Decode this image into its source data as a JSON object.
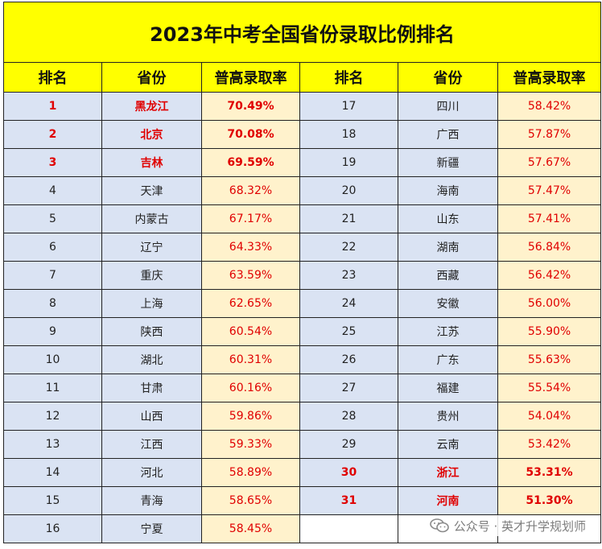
{
  "title": "2023年中考全国省份录取比例排名",
  "headers": [
    "排名",
    "省份",
    "普高录取率",
    "排名",
    "省份",
    "普高录取率"
  ],
  "rows": [
    {
      "left": {
        "rank": "1",
        "province": "黑龙江",
        "rate": "70.49%",
        "highlight": true
      },
      "right": {
        "rank": "17",
        "province": "四川",
        "rate": "58.42%",
        "highlight": false
      }
    },
    {
      "left": {
        "rank": "2",
        "province": "北京",
        "rate": "70.08%",
        "highlight": true
      },
      "right": {
        "rank": "18",
        "province": "广西",
        "rate": "57.87%",
        "highlight": false
      }
    },
    {
      "left": {
        "rank": "3",
        "province": "吉林",
        "rate": "69.59%",
        "highlight": true
      },
      "right": {
        "rank": "19",
        "province": "新疆",
        "rate": "57.67%",
        "highlight": false
      }
    },
    {
      "left": {
        "rank": "4",
        "province": "天津",
        "rate": "68.32%",
        "highlight": false
      },
      "right": {
        "rank": "20",
        "province": "海南",
        "rate": "57.47%",
        "highlight": false
      }
    },
    {
      "left": {
        "rank": "5",
        "province": "内蒙古",
        "rate": "67.17%",
        "highlight": false
      },
      "right": {
        "rank": "21",
        "province": "山东",
        "rate": "57.41%",
        "highlight": false
      }
    },
    {
      "left": {
        "rank": "6",
        "province": "辽宁",
        "rate": "64.33%",
        "highlight": false
      },
      "right": {
        "rank": "22",
        "province": "湖南",
        "rate": "56.84%",
        "highlight": false
      }
    },
    {
      "left": {
        "rank": "7",
        "province": "重庆",
        "rate": "63.59%",
        "highlight": false
      },
      "right": {
        "rank": "23",
        "province": "西藏",
        "rate": "56.42%",
        "highlight": false
      }
    },
    {
      "left": {
        "rank": "8",
        "province": "上海",
        "rate": "62.65%",
        "highlight": false
      },
      "right": {
        "rank": "24",
        "province": "安徽",
        "rate": "56.00%",
        "highlight": false
      }
    },
    {
      "left": {
        "rank": "9",
        "province": "陕西",
        "rate": "60.54%",
        "highlight": false
      },
      "right": {
        "rank": "25",
        "province": "江苏",
        "rate": "55.90%",
        "highlight": false
      }
    },
    {
      "left": {
        "rank": "10",
        "province": "湖北",
        "rate": "60.31%",
        "highlight": false
      },
      "right": {
        "rank": "26",
        "province": "广东",
        "rate": "55.63%",
        "highlight": false
      }
    },
    {
      "left": {
        "rank": "11",
        "province": "甘肃",
        "rate": "60.16%",
        "highlight": false
      },
      "right": {
        "rank": "27",
        "province": "福建",
        "rate": "55.54%",
        "highlight": false
      }
    },
    {
      "left": {
        "rank": "12",
        "province": "山西",
        "rate": "59.86%",
        "highlight": false
      },
      "right": {
        "rank": "28",
        "province": "贵州",
        "rate": "54.04%",
        "highlight": false
      }
    },
    {
      "left": {
        "rank": "13",
        "province": "江西",
        "rate": "59.33%",
        "highlight": false
      },
      "right": {
        "rank": "29",
        "province": "云南",
        "rate": "53.42%",
        "highlight": false
      }
    },
    {
      "left": {
        "rank": "14",
        "province": "河北",
        "rate": "58.89%",
        "highlight": false
      },
      "right": {
        "rank": "30",
        "province": "浙江",
        "rate": "53.31%",
        "highlight": true
      }
    },
    {
      "left": {
        "rank": "15",
        "province": "青海",
        "rate": "58.65%",
        "highlight": false
      },
      "right": {
        "rank": "31",
        "province": "河南",
        "rate": "51.30%",
        "highlight": true
      }
    },
    {
      "left": {
        "rank": "16",
        "province": "宁夏",
        "rate": "58.45%",
        "highlight": false
      },
      "right": null
    }
  ],
  "watermark": {
    "text": "公众号 · 英才升学规划师",
    "icon": "wechat-icon"
  },
  "colors": {
    "title_bg": "#ffff00",
    "rank_bg": "#dae3f3",
    "rate_bg": "#fff2cc",
    "highlight_text": "#e00000"
  }
}
